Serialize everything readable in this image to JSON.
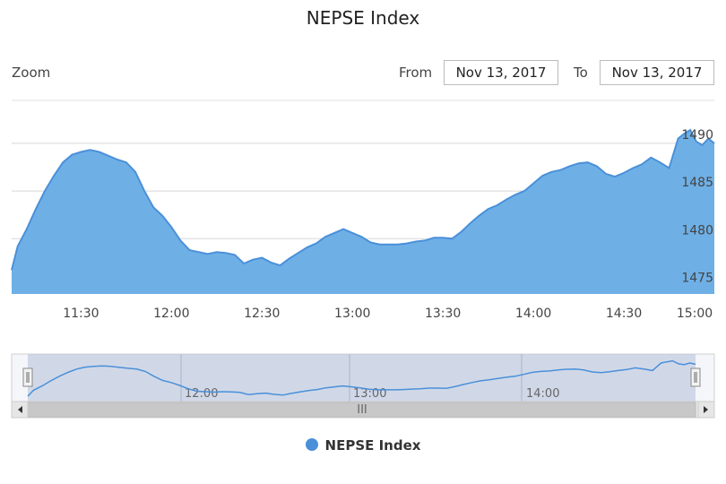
{
  "header": {
    "title": "NEPSE Index",
    "zoom_label": "Zoom",
    "from_label": "From",
    "from_value": "Nov 13, 2017",
    "to_label": "To",
    "to_value": "Nov 13, 2017"
  },
  "legend": {
    "label": "NEPSE Index",
    "color": "#4a90d9"
  },
  "navigator": {
    "tick_labels": [
      "12:00",
      "13:00",
      "14:00"
    ],
    "scrollbar_grip": "III",
    "left_arrow": "◀",
    "right_arrow": "▶"
  },
  "colors": {
    "area_fill": "#6eb0e6",
    "line": "#4a90d9",
    "navigator_mask": "#c0cce0",
    "scrollbar": "#c8c8c8"
  },
  "chart_data": {
    "type": "area",
    "title": "NEPSE Index",
    "xlabel": "",
    "ylabel": "",
    "x_ticks": [
      "11:30",
      "12:00",
      "12:30",
      "13:00",
      "13:30",
      "14:00",
      "14:30",
      "15:00"
    ],
    "y_ticks": [
      1475,
      1480,
      1485,
      1490
    ],
    "ylim": [
      1474.2,
      1494.5
    ],
    "xlim": [
      "11:07",
      "15:00"
    ],
    "grid": true,
    "legend_position": "bottom-center",
    "series": [
      {
        "name": "NEPSE Index",
        "x": [
          "11:07",
          "11:09",
          "11:12",
          "11:15",
          "11:18",
          "11:21",
          "11:24",
          "11:27",
          "11:30",
          "11:33",
          "11:36",
          "11:39",
          "11:42",
          "11:45",
          "11:48",
          "11:51",
          "11:54",
          "11:57",
          "12:00",
          "12:03",
          "12:06",
          "12:09",
          "12:12",
          "12:15",
          "12:18",
          "12:21",
          "12:24",
          "12:27",
          "12:30",
          "12:33",
          "12:36",
          "12:39",
          "12:42",
          "12:45",
          "12:48",
          "12:51",
          "12:54",
          "12:57",
          "13:00",
          "13:03",
          "13:06",
          "13:09",
          "13:12",
          "13:15",
          "13:18",
          "13:21",
          "13:24",
          "13:27",
          "13:30",
          "13:33",
          "13:36",
          "13:39",
          "13:42",
          "13:45",
          "13:48",
          "13:51",
          "13:54",
          "13:57",
          "14:00",
          "14:03",
          "14:06",
          "14:09",
          "14:12",
          "14:15",
          "14:18",
          "14:21",
          "14:24",
          "14:27",
          "14:30",
          "14:33",
          "14:36",
          "14:39",
          "14:42",
          "14:45",
          "14:48",
          "14:50",
          "14:52",
          "14:54",
          "14:56",
          "14:58",
          "15:00"
        ],
        "values": [
          1476.7,
          1479.2,
          1481.0,
          1483.1,
          1485.0,
          1486.6,
          1488.0,
          1488.8,
          1489.1,
          1489.3,
          1489.1,
          1488.7,
          1488.3,
          1488.0,
          1487.0,
          1485.0,
          1483.3,
          1482.4,
          1481.2,
          1479.8,
          1478.8,
          1478.6,
          1478.4,
          1478.6,
          1478.5,
          1478.3,
          1477.4,
          1477.8,
          1478.0,
          1477.5,
          1477.2,
          1477.9,
          1478.5,
          1479.1,
          1479.5,
          1480.2,
          1480.6,
          1481.0,
          1480.6,
          1480.2,
          1479.6,
          1479.4,
          1479.4,
          1479.4,
          1479.5,
          1479.7,
          1479.8,
          1480.1,
          1480.1,
          1480.0,
          1480.7,
          1481.6,
          1482.4,
          1483.1,
          1483.5,
          1484.1,
          1484.6,
          1485.0,
          1485.8,
          1486.6,
          1487.0,
          1487.2,
          1487.6,
          1487.9,
          1488.0,
          1487.6,
          1486.8,
          1486.5,
          1486.9,
          1487.4,
          1487.8,
          1488.5,
          1488.0,
          1487.4,
          1490.5,
          1491.0,
          1491.4,
          1490.2,
          1489.8,
          1490.5,
          1490.0
        ]
      }
    ]
  }
}
